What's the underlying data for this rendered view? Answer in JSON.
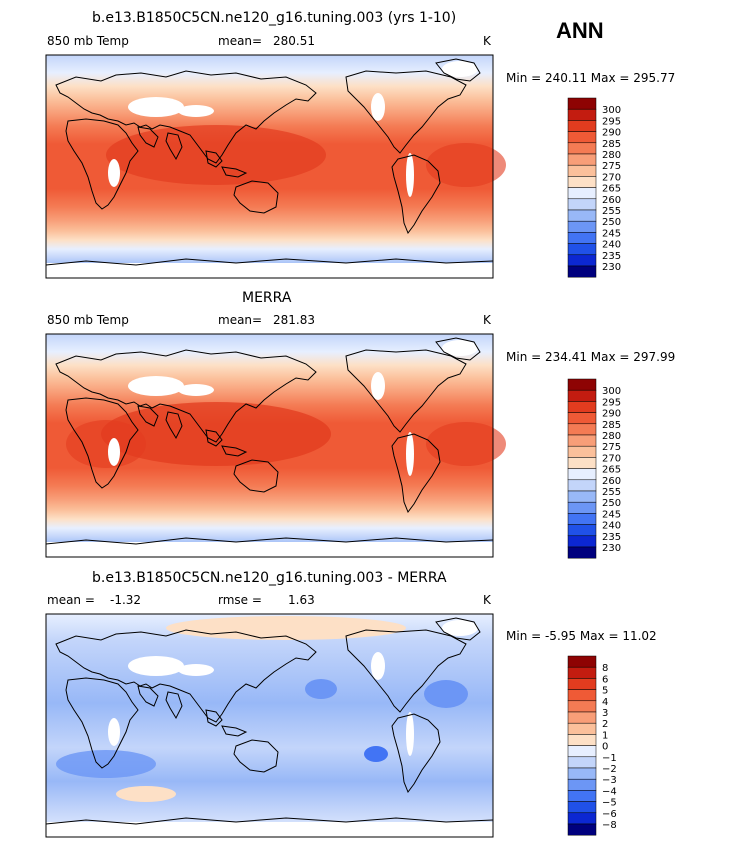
{
  "season": "ANN",
  "colors": {
    "abs_scale": [
      "#00007e",
      "#0c27d2",
      "#2051e8",
      "#4274f4",
      "#6c96f5",
      "#98b8f7",
      "#c3d5fa",
      "#e7efff",
      "#fde0c6",
      "#fbc09b",
      "#f89e78",
      "#f47b54",
      "#ef5a36",
      "#e23c1f",
      "#c31c10",
      "#8e0303"
    ],
    "diff_scale": [
      "#00007e",
      "#0c27d2",
      "#2051e8",
      "#4274f4",
      "#6c96f5",
      "#98b8f7",
      "#c3d5fa",
      "#e7efff",
      "#fde0c6",
      "#fbc09b",
      "#f89e78",
      "#f47b54",
      "#ef5a36",
      "#e23c1f",
      "#c31c10",
      "#8e0303"
    ]
  },
  "panels": [
    {
      "id": "model",
      "title": "b.e13.B1850C5CN.ne120_g16.tuning.003 (yrs 1-10)",
      "left_label": "850 mb Temp",
      "stat_label": "mean=",
      "stat_value": "280.51",
      "stat2_label": "",
      "stat2_value": "",
      "units": "K",
      "minmax": "Min = 240.11 Max = 295.77",
      "scale_labels": [
        "300",
        "295",
        "290",
        "285",
        "280",
        "275",
        "270",
        "265",
        "260",
        "255",
        "250",
        "245",
        "240",
        "235",
        "230"
      ]
    },
    {
      "id": "obs",
      "title": "MERRA",
      "left_label": "850 mb Temp",
      "stat_label": "mean=",
      "stat_value": "281.83",
      "stat2_label": "",
      "stat2_value": "",
      "units": "K",
      "minmax": "Min = 234.41 Max = 297.99",
      "scale_labels": [
        "300",
        "295",
        "290",
        "285",
        "280",
        "275",
        "270",
        "265",
        "260",
        "255",
        "250",
        "245",
        "240",
        "235",
        "230"
      ]
    },
    {
      "id": "diff",
      "title": "b.e13.B1850C5CN.ne120_g16.tuning.003 - MERRA",
      "left_label": "mean =",
      "stat_label": "",
      "stat_value": "-1.32",
      "stat2_label": "rmse =",
      "stat2_value": "1.63",
      "units": "K",
      "minmax": "Min = -5.95 Max = 11.02",
      "scale_labels": [
        "8",
        "6",
        "5",
        "4",
        "3",
        "2",
        "1",
        "0",
        "−1",
        "−2",
        "−3",
        "−4",
        "−5",
        "−6",
        "−8"
      ]
    }
  ]
}
